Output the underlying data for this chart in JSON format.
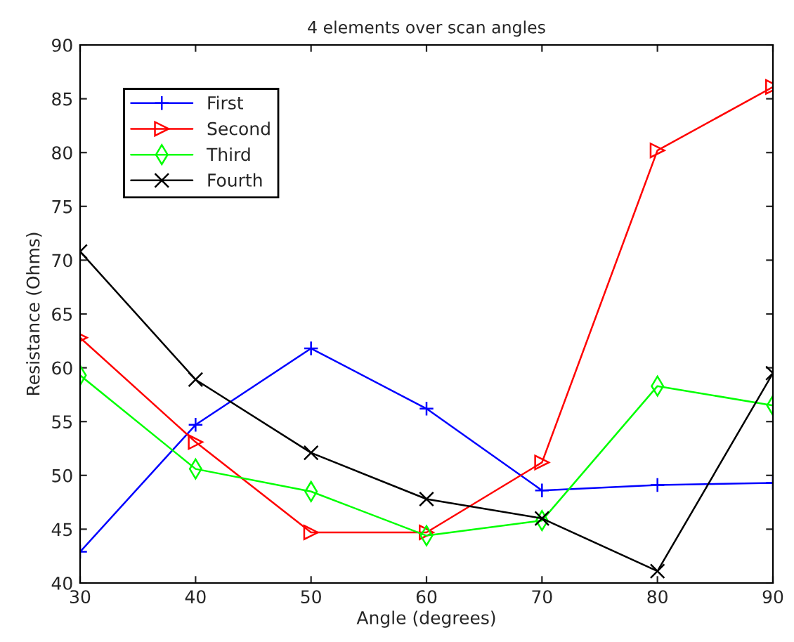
{
  "chart_data": {
    "type": "line",
    "title": "4 elements over scan angles",
    "xlabel": "Angle (degrees)",
    "ylabel": "Resistance (Ohms)",
    "x": [
      30,
      40,
      50,
      60,
      70,
      80,
      90
    ],
    "series": [
      {
        "name": "First",
        "color": "#0000ff",
        "marker": "plus",
        "values": [
          42.9,
          54.7,
          61.8,
          56.2,
          48.6,
          49.1,
          49.3
        ]
      },
      {
        "name": "Second",
        "color": "#ff0000",
        "marker": "triangle",
        "values": [
          62.8,
          53.1,
          44.7,
          44.7,
          51.2,
          80.2,
          86.1
        ]
      },
      {
        "name": "Third",
        "color": "#00ff00",
        "marker": "diamond",
        "values": [
          59.3,
          50.6,
          48.5,
          44.4,
          45.8,
          58.3,
          56.5
        ]
      },
      {
        "name": "Fourth",
        "color": "#000000",
        "marker": "x",
        "values": [
          70.8,
          58.9,
          52.1,
          47.8,
          46.0,
          41.1,
          59.5
        ]
      }
    ],
    "xlim": [
      30,
      90
    ],
    "xticks": [
      30,
      40,
      50,
      60,
      70,
      80,
      90
    ],
    "ylim": [
      40,
      90
    ],
    "yticks": [
      40,
      45,
      50,
      55,
      60,
      65,
      70,
      75,
      80,
      85,
      90
    ],
    "grid": false,
    "legend": "top left",
    "line_style": "solid"
  }
}
